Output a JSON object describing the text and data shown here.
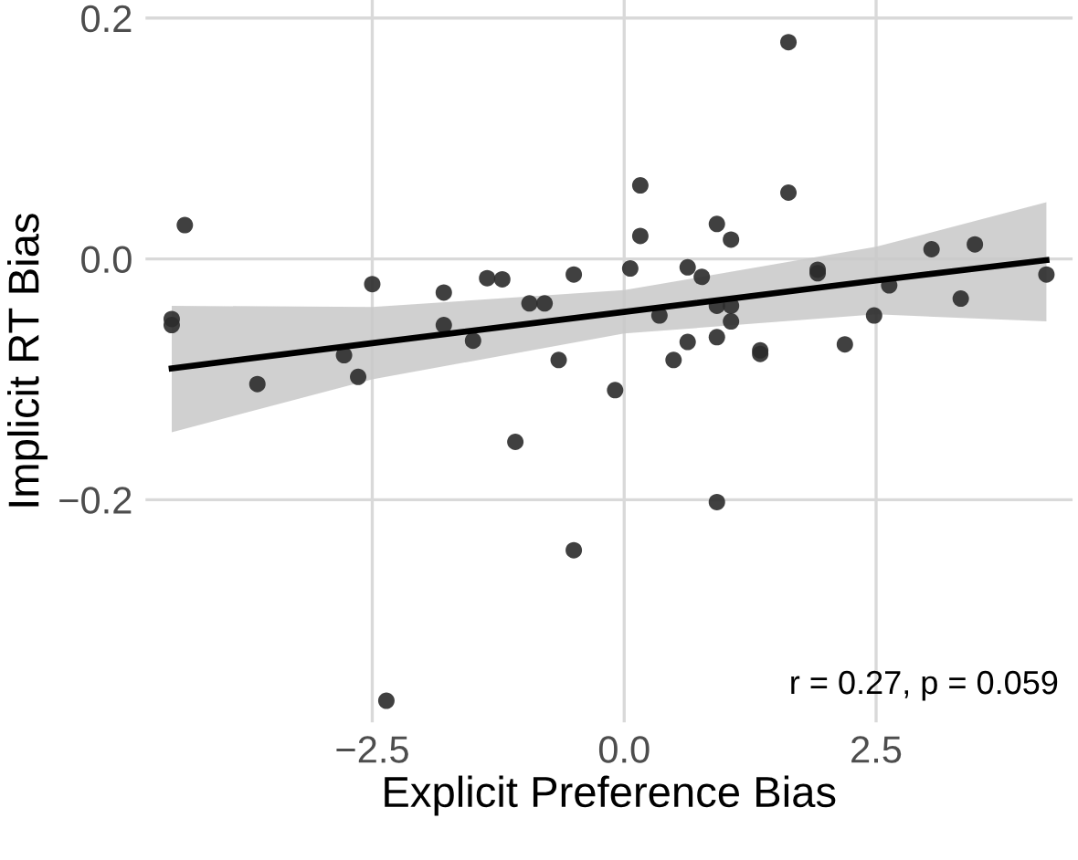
{
  "chart_data": {
    "type": "scatter",
    "xlabel": "Explicit Preference Bias",
    "ylabel": "Implicit RT Bias",
    "annotations": [
      "r = 0.27, p = 0.059"
    ],
    "xlim": [
      -4.75,
      4.45
    ],
    "ylim": [
      -0.385,
      0.215
    ],
    "xticks": [
      {
        "value": -2.5,
        "label": "−2.5"
      },
      {
        "value": 0,
        "label": "0.0"
      },
      {
        "value": 2.5,
        "label": "2.5"
      }
    ],
    "yticks": [
      {
        "value": -0.2,
        "label": "−0.2"
      },
      {
        "value": 0,
        "label": "0.0"
      },
      {
        "value": 0.2,
        "label": "0.2"
      }
    ],
    "grid": true,
    "legend": false,
    "series": [
      {
        "color": "#2b2b2b",
        "marker": "circle",
        "x": [
          -4.36,
          -4.49,
          -4.49,
          -3.64,
          -2.78,
          -2.64,
          -2.5,
          -1.79,
          -1.79,
          -1.5,
          -1.36,
          -1.21,
          -0.94,
          -0.79,
          -0.65,
          -0.5,
          -0.09,
          0.06,
          0.16,
          0.16,
          1.63,
          1.63,
          0.92,
          1.06,
          0.63,
          0.77,
          0.35,
          0.92,
          1.06,
          1.06,
          0.63,
          0.49,
          0.92,
          1.35,
          1.35,
          1.92,
          1.92,
          2.19,
          2.48,
          2.63,
          3.05,
          3.48,
          3.34,
          4.19,
          -1.08,
          0.92,
          -0.5,
          -2.36
        ],
        "values": [
          0.028,
          -0.05,
          -0.055,
          -0.104,
          -0.08,
          -0.098,
          -0.021,
          -0.028,
          -0.055,
          -0.068,
          -0.016,
          -0.017,
          -0.037,
          -0.037,
          -0.084,
          -0.013,
          -0.109,
          -0.008,
          0.061,
          0.019,
          0.18,
          0.055,
          0.029,
          0.016,
          -0.007,
          -0.015,
          -0.047,
          -0.039,
          -0.039,
          -0.052,
          -0.069,
          -0.084,
          -0.065,
          -0.076,
          -0.079,
          -0.009,
          -0.012,
          -0.071,
          -0.047,
          -0.022,
          0.008,
          0.012,
          -0.033,
          -0.013,
          -0.152,
          -0.202,
          -0.242,
          -0.367
        ]
      },
      {
        "type": "line",
        "marker": "none",
        "color": "#000000",
        "x": [
          -4.49,
          -2.5,
          0,
          2.5,
          4.19
        ],
        "values": [
          -0.091,
          -0.07,
          -0.044,
          -0.018,
          -0.001
        ],
        "lower": [
          -0.144,
          -0.1,
          -0.062,
          -0.046,
          -0.052
        ],
        "upper": [
          -0.039,
          -0.04,
          -0.026,
          0.01,
          0.047
        ]
      }
    ]
  }
}
